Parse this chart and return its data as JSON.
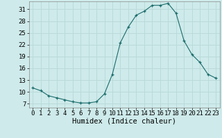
{
  "x": [
    0,
    1,
    2,
    3,
    4,
    5,
    6,
    7,
    8,
    9,
    10,
    11,
    12,
    13,
    14,
    15,
    16,
    17,
    18,
    19,
    20,
    21,
    22,
    23
  ],
  "y": [
    11.0,
    10.3,
    9.0,
    8.5,
    8.0,
    7.5,
    7.2,
    7.2,
    7.5,
    9.5,
    14.5,
    22.5,
    26.5,
    29.5,
    30.5,
    32.0,
    32.0,
    32.5,
    30.0,
    23.0,
    19.5,
    17.5,
    14.5,
    13.5
  ],
  "xlabel": "Humidex (Indice chaleur)",
  "yticks": [
    7,
    10,
    13,
    16,
    19,
    22,
    25,
    28,
    31
  ],
  "xticks": [
    0,
    1,
    2,
    3,
    4,
    5,
    6,
    7,
    8,
    9,
    10,
    11,
    12,
    13,
    14,
    15,
    16,
    17,
    18,
    19,
    20,
    21,
    22,
    23
  ],
  "ylim": [
    6.0,
    33.0
  ],
  "xlim": [
    -0.5,
    23.5
  ],
  "bg_color": "#ceeaea",
  "line_color": "#1a6b6b",
  "grid_color": "#b8d8d8",
  "xlabel_fontsize": 7.5,
  "tick_fontsize": 6.5
}
